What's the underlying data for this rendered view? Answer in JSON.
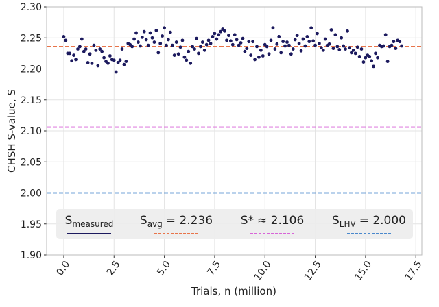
{
  "chart_data": {
    "type": "scatter",
    "xlabel": "Trials, n (million)",
    "ylabel": "CHSH S-value, S",
    "xlim": [
      -0.85,
      17.8
    ],
    "ylim": [
      1.9,
      2.3
    ],
    "xticks": [
      {
        "value": 0,
        "label": "0.0"
      },
      2.5,
      {
        "value": 5,
        "label": "5.0"
      },
      7.5,
      {
        "value": 10,
        "label": "10.0"
      },
      12.5,
      {
        "value": 15,
        "label": "15.0"
      },
      17.5
    ],
    "yticks": [
      {
        "value": 1.9,
        "label": "1.90"
      },
      1.95,
      {
        "value": 2.0,
        "label": "2.00"
      },
      2.05,
      {
        "value": 2.1,
        "label": "2.10"
      },
      2.15,
      {
        "value": 2.2,
        "label": "2.20"
      },
      2.25,
      {
        "value": 2.3,
        "label": "2.30"
      }
    ],
    "grid": true,
    "legend": "bottom",
    "series": [
      {
        "name": "S",
        "subscript": "measured",
        "color": "#1c1a5e",
        "x": [
          0,
          0.1,
          0.2,
          0.3,
          0.4,
          0.5,
          0.6,
          0.7,
          0.8,
          0.9,
          1,
          1.1,
          1.2,
          1.3,
          1.4,
          1.5,
          1.6,
          1.7,
          1.8,
          1.9,
          2,
          2.1,
          2.2,
          2.3,
          2.4,
          2.5,
          2.6,
          2.7,
          2.8,
          2.9,
          3,
          3.1,
          3.2,
          3.3,
          3.4,
          3.5,
          3.6,
          3.7,
          3.8,
          3.9,
          4,
          4.1,
          4.2,
          4.3,
          4.4,
          4.5,
          4.6,
          4.7,
          4.8,
          4.9,
          5,
          5.1,
          5.2,
          5.3,
          5.4,
          5.5,
          5.6,
          5.7,
          5.8,
          5.9,
          6,
          6.1,
          6.2,
          6.3,
          6.4,
          6.5,
          6.6,
          6.7,
          6.8,
          6.9,
          7,
          7.1,
          7.2,
          7.3,
          7.4,
          7.5,
          7.6,
          7.7,
          7.8,
          7.9,
          8,
          8.1,
          8.2,
          8.3,
          8.4,
          8.5,
          8.6,
          8.7,
          8.8,
          8.9,
          9,
          9.1,
          9.2,
          9.3,
          9.4,
          9.5,
          9.6,
          9.7,
          9.8,
          9.9,
          10,
          10.1,
          10.2,
          10.3,
          10.4,
          10.5,
          10.6,
          10.7,
          10.8,
          10.9,
          11,
          11.1,
          11.2,
          11.3,
          11.4,
          11.5,
          11.6,
          11.7,
          11.8,
          11.9,
          12,
          12.1,
          12.2,
          12.3,
          12.4,
          12.5,
          12.6,
          12.7,
          12.8,
          12.9,
          13,
          13.1,
          13.2,
          13.3,
          13.4,
          13.5,
          13.6,
          13.7,
          13.8,
          13.9,
          14,
          14.1,
          14.2,
          14.3,
          14.4,
          14.5,
          14.6,
          14.7,
          14.8,
          14.9,
          15,
          15.1,
          15.2,
          15.3,
          15.4,
          15.5,
          15.6,
          15.7,
          15.8,
          15.9,
          16,
          16.1,
          16.2,
          16.3,
          16.4,
          16.5,
          16.6,
          16.7,
          16.8
        ],
        "values": [
          2.252,
          2.246,
          2.225,
          2.225,
          2.213,
          2.222,
          2.215,
          2.232,
          2.236,
          2.248,
          2.228,
          2.232,
          2.21,
          2.224,
          2.209,
          2.238,
          2.23,
          2.205,
          2.232,
          2.228,
          2.218,
          2.212,
          2.209,
          2.221,
          2.215,
          2.214,
          2.195,
          2.21,
          2.214,
          2.232,
          2.207,
          2.212,
          2.241,
          2.239,
          2.236,
          2.248,
          2.258,
          2.243,
          2.237,
          2.251,
          2.26,
          2.247,
          2.238,
          2.258,
          2.25,
          2.243,
          2.262,
          2.226,
          2.241,
          2.253,
          2.266,
          2.238,
          2.247,
          2.259,
          2.238,
          2.222,
          2.243,
          2.224,
          2.235,
          2.246,
          2.219,
          2.214,
          2.228,
          2.209,
          2.236,
          2.232,
          2.249,
          2.225,
          2.236,
          2.243,
          2.23,
          2.239,
          2.246,
          2.241,
          2.252,
          2.257,
          2.248,
          2.255,
          2.26,
          2.264,
          2.261,
          2.246,
          2.254,
          2.245,
          2.239,
          2.255,
          2.247,
          2.238,
          2.242,
          2.249,
          2.228,
          2.233,
          2.244,
          2.222,
          2.244,
          2.215,
          2.236,
          2.219,
          2.23,
          2.221,
          2.239,
          2.236,
          2.224,
          2.246,
          2.266,
          2.232,
          2.24,
          2.252,
          2.226,
          2.244,
          2.237,
          2.243,
          2.238,
          2.224,
          2.232,
          2.247,
          2.254,
          2.241,
          2.229,
          2.248,
          2.237,
          2.252,
          2.244,
          2.266,
          2.245,
          2.238,
          2.257,
          2.241,
          2.234,
          2.23,
          2.248,
          2.238,
          2.24,
          2.263,
          2.233,
          2.255,
          2.236,
          2.231,
          2.25,
          2.237,
          2.232,
          2.261,
          2.234,
          2.226,
          2.23,
          2.225,
          2.235,
          2.22,
          2.232,
          2.211,
          2.218,
          2.222,
          2.22,
          2.213,
          2.204,
          2.225,
          2.218,
          2.238,
          2.236,
          2.237,
          2.255,
          2.212,
          2.236,
          2.238,
          2.244,
          2.233,
          2.246,
          2.244,
          2.237
        ]
      }
    ],
    "reference_lines": [
      {
        "name": "S",
        "subscript": "avg",
        "label": "= 2.236",
        "value": 2.236,
        "color": "#e8744a"
      },
      {
        "name": "S*",
        "label": "≈ 2.106",
        "value": 2.106,
        "color": "#d865d8"
      },
      {
        "name": "S",
        "subscript": "LHV",
        "label": "= 2.000",
        "value": 2.0,
        "color": "#4a88cc"
      }
    ]
  }
}
